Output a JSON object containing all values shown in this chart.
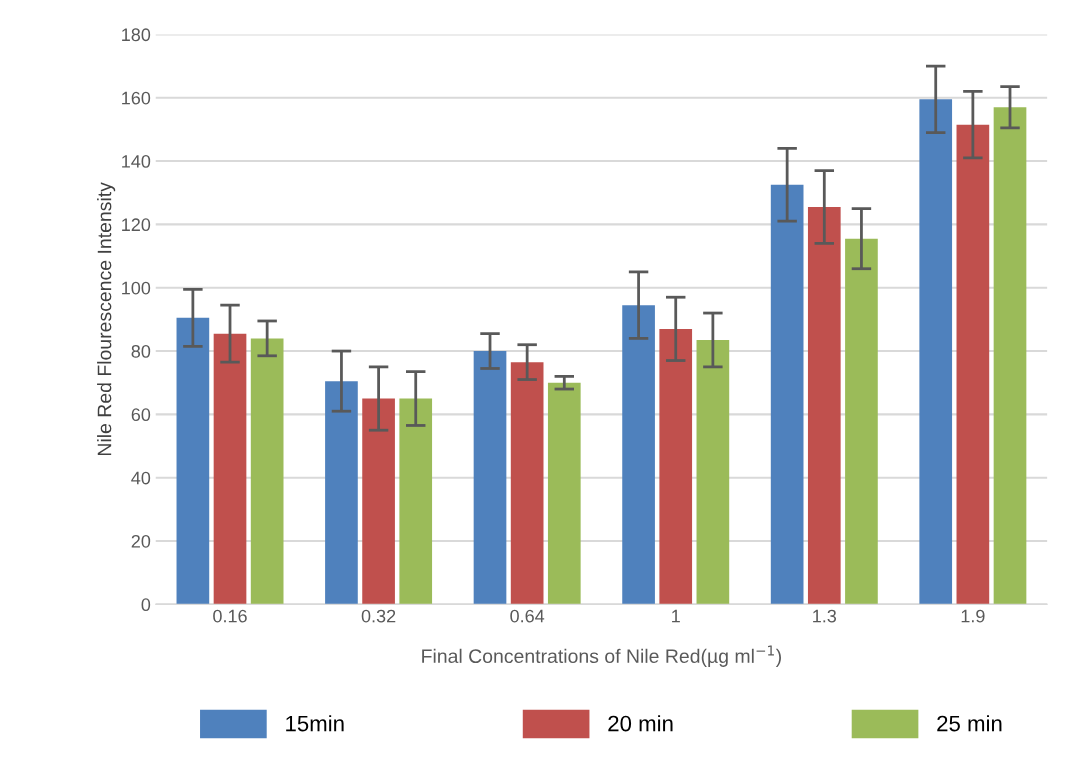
{
  "chart_data": {
    "type": "bar",
    "xlabel": "Final Concentrations of Nile Red(µg ml$^{−1}$)",
    "ylabel": "Nile Red Flourescence Intensity",
    "categories": [
      "0.16",
      "0.32",
      "0.64",
      "1",
      "1.3",
      "1.9"
    ],
    "series": [
      {
        "name": "15min",
        "color": "#4f81bd",
        "values": [
          90.5,
          70.5,
          80,
          94.5,
          132.5,
          159.5
        ],
        "errors": [
          9,
          9.5,
          5.5,
          10.5,
          11.5,
          10.5
        ]
      },
      {
        "name": "20 min",
        "color": "#c0504d",
        "values": [
          85.5,
          65,
          76.5,
          87,
          125.5,
          151.5
        ],
        "errors": [
          9,
          10,
          5.5,
          10,
          11.5,
          10.5
        ]
      },
      {
        "name": "25 min",
        "color": "#9bbb59",
        "values": [
          84,
          65,
          70,
          83.5,
          115.5,
          157
        ],
        "errors": [
          5.5,
          8.5,
          2,
          8.5,
          9.5,
          6.5
        ]
      }
    ],
    "ylim": [
      0,
      180
    ],
    "yticks": [
      0,
      20,
      40,
      60,
      80,
      100,
      120,
      140,
      160,
      180
    ],
    "grid": "y",
    "legend": "bottom"
  }
}
